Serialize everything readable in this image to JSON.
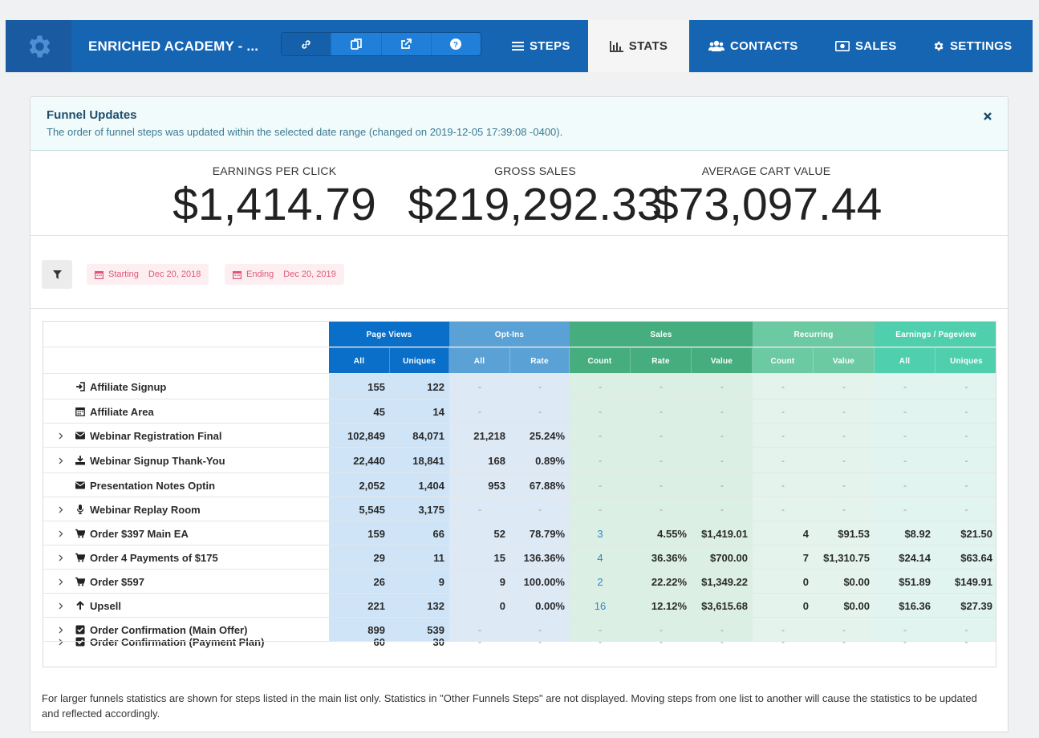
{
  "header": {
    "funnel_name": "ENRICHED ACADEMY - ...",
    "tools": [
      "link-icon",
      "copy-icon",
      "external-link-icon",
      "help-icon"
    ],
    "nav": [
      {
        "label": "STEPS",
        "icon": "list-icon"
      },
      {
        "label": "STATS",
        "icon": "bar-chart-icon",
        "active": true
      },
      {
        "label": "CONTACTS",
        "icon": "users-icon"
      },
      {
        "label": "SALES",
        "icon": "money-icon"
      },
      {
        "label": "SETTINGS",
        "icon": "gear-icon"
      }
    ]
  },
  "alert": {
    "title": "Funnel Updates",
    "text": "The order of funnel steps was updated within the selected date range (changed on 2019-12-05 17:39:08 -0400)."
  },
  "stats": {
    "epc_label": "EARNINGS PER CLICK",
    "epc_value": "$1,414.79",
    "gross_label": "GROSS SALES",
    "gross_value": "$219,292.33",
    "acv_label": "AVERAGE CART VALUE",
    "acv_value": "$73,097.44"
  },
  "filters": {
    "starting_label": "Starting",
    "starting_value": "Dec 20, 2018",
    "ending_label": "Ending",
    "ending_value": "Dec 20, 2019"
  },
  "table": {
    "groups": [
      "Page Views",
      "Opt-Ins",
      "Sales",
      "Recurring",
      "Earnings / Pageview"
    ],
    "subheaders": [
      "All",
      "Uniques",
      "All",
      "Rate",
      "Count",
      "Rate",
      "Value",
      "Count",
      "Value",
      "All",
      "Uniques"
    ],
    "rows": [
      {
        "name": "Affiliate Signup",
        "icon": "sign-in-icon",
        "expand": false,
        "cells": [
          "155",
          "122",
          "-",
          "-",
          "-",
          "-",
          "-",
          "-",
          "-",
          "-",
          "-"
        ]
      },
      {
        "name": "Affiliate Area",
        "icon": "calendar-icon",
        "expand": false,
        "cells": [
          "45",
          "14",
          "-",
          "-",
          "-",
          "-",
          "-",
          "-",
          "-",
          "-",
          "-"
        ]
      },
      {
        "name": "Webinar Registration Final",
        "icon": "envelope-icon",
        "expand": true,
        "cells": [
          "102,849",
          "84,071",
          "21,218",
          "25.24%",
          "-",
          "-",
          "-",
          "-",
          "-",
          "-",
          "-"
        ]
      },
      {
        "name": "Webinar Signup Thank-You",
        "icon": "download-icon",
        "expand": true,
        "cells": [
          "22,440",
          "18,841",
          "168",
          "0.89%",
          "-",
          "-",
          "-",
          "-",
          "-",
          "-",
          "-"
        ]
      },
      {
        "name": "Presentation Notes Optin",
        "icon": "envelope-icon",
        "expand": false,
        "cells": [
          "2,052",
          "1,404",
          "953",
          "67.88%",
          "-",
          "-",
          "-",
          "-",
          "-",
          "-",
          "-"
        ]
      },
      {
        "name": "Webinar Replay Room",
        "icon": "microphone-icon",
        "expand": true,
        "cells": [
          "5,545",
          "3,175",
          "-",
          "-",
          "-",
          "-",
          "-",
          "-",
          "-",
          "-",
          "-"
        ]
      },
      {
        "name": "Order $397 Main EA",
        "icon": "cart-icon",
        "expand": true,
        "cells": [
          "159",
          "66",
          "52",
          "78.79%",
          "3",
          "4.55%",
          "$1,419.01",
          "4",
          "$91.53",
          "$8.92",
          "$21.50"
        ]
      },
      {
        "name": "Order 4 Payments of $175",
        "icon": "cart-icon",
        "expand": true,
        "cells": [
          "29",
          "11",
          "15",
          "136.36%",
          "4",
          "36.36%",
          "$700.00",
          "7",
          "$1,310.75",
          "$24.14",
          "$63.64"
        ]
      },
      {
        "name": "Order $597",
        "icon": "cart-icon",
        "expand": true,
        "cells": [
          "26",
          "9",
          "9",
          "100.00%",
          "2",
          "22.22%",
          "$1,349.22",
          "0",
          "$0.00",
          "$51.89",
          "$149.91"
        ]
      },
      {
        "name": "Upsell",
        "icon": "arrow-up-icon",
        "expand": true,
        "cells": [
          "221",
          "132",
          "0",
          "0.00%",
          "16",
          "12.12%",
          "$3,615.68",
          "0",
          "$0.00",
          "$16.36",
          "$27.39"
        ]
      },
      {
        "name": "Order Confirmation (Main Offer)",
        "icon": "check-square-icon",
        "expand": true,
        "cells": [
          "899",
          "539",
          "-",
          "-",
          "-",
          "-",
          "-",
          "-",
          "-",
          "-",
          "-"
        ]
      },
      {
        "name": "Order Confirmation (Payment Plan)",
        "icon": "check-square-icon",
        "expand": true,
        "cells": [
          "60",
          "30",
          "-",
          "-",
          "-",
          "-",
          "-",
          "-",
          "-",
          "-",
          "-"
        ]
      }
    ]
  },
  "footer_note": "For larger funnels statistics are shown for steps listed in the main list only. Statistics in \"Other Funnels Steps\" are not displayed. Moving steps from one list to another will cause the statistics to be updated and reflected accordingly.",
  "colors": {
    "nav_blue": "#1565b3",
    "page_views_dark": "#0a6fc9",
    "opt_ins": "#5aa2d6",
    "sales": "#46ad7e",
    "recurring": "#6ccaa3",
    "earnings": "#4fcfae"
  }
}
